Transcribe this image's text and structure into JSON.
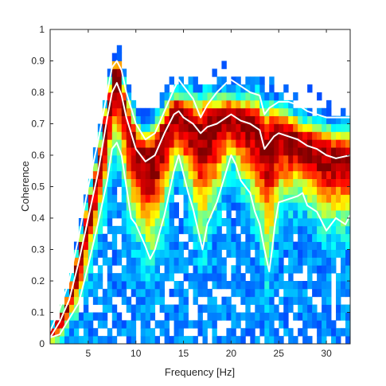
{
  "chart_data": {
    "type": "heatmap",
    "xlabel": "Frequency [Hz]",
    "ylabel": "Coherence",
    "xlim": [
      1,
      32.5
    ],
    "ylim": [
      0,
      1
    ],
    "x_ticks": [
      5,
      10,
      15,
      20,
      25,
      30
    ],
    "y_ticks": [
      0,
      0.1,
      0.2,
      0.3,
      0.4,
      0.5,
      0.6,
      0.7,
      0.8,
      0.9,
      1
    ],
    "y_tick_labels": [
      "0",
      "0.1",
      "0.2",
      "0.3",
      "0.4",
      "0.5",
      "0.6",
      "0.7",
      "0.8",
      "0.9",
      "1"
    ],
    "colormap": "jet",
    "background": "#ffffff",
    "heatmap": {
      "x_start": 1.0,
      "x_step": 0.5,
      "y_step": 0.025,
      "description_of_density": "2D histogram of coherence values per frequency; density shown as jet colours"
    },
    "series": [
      {
        "color": "#ffffff",
        "x": [
          1,
          2,
          3,
          4,
          5,
          6,
          7,
          7.5,
          8,
          8.5,
          9,
          10,
          11,
          12,
          13,
          14,
          14.5,
          15,
          16,
          16.8,
          17.5,
          18.5,
          19.5,
          20,
          21,
          22,
          23,
          23.5,
          24,
          24.5,
          25,
          26,
          27,
          28,
          29,
          30,
          31,
          32.5
        ],
        "values": [
          0.02,
          0.07,
          0.14,
          0.26,
          0.4,
          0.54,
          0.72,
          0.8,
          0.83,
          0.79,
          0.72,
          0.62,
          0.58,
          0.6,
          0.67,
          0.73,
          0.74,
          0.72,
          0.7,
          0.67,
          0.69,
          0.7,
          0.72,
          0.73,
          0.71,
          0.7,
          0.68,
          0.62,
          0.64,
          0.66,
          0.67,
          0.66,
          0.65,
          0.63,
          0.62,
          0.6,
          0.59,
          0.6
        ]
      },
      {
        "color": "#ffffff",
        "x": [
          1,
          2,
          3,
          4,
          5,
          6,
          7,
          7.5,
          8,
          8.5,
          9,
          10,
          11,
          12,
          13,
          14,
          14.5,
          15,
          16,
          16.8,
          17.5,
          18.5,
          19.5,
          20,
          21,
          22,
          23,
          23.5,
          24,
          24.5,
          25,
          26,
          27,
          28,
          29,
          30,
          31,
          32.5
        ],
        "values": [
          0.04,
          0.11,
          0.2,
          0.34,
          0.5,
          0.64,
          0.8,
          0.88,
          0.9,
          0.87,
          0.8,
          0.7,
          0.65,
          0.67,
          0.74,
          0.81,
          0.84,
          0.82,
          0.78,
          0.72,
          0.76,
          0.8,
          0.83,
          0.84,
          0.82,
          0.8,
          0.79,
          0.73,
          0.75,
          0.76,
          0.77,
          0.77,
          0.76,
          0.74,
          0.73,
          0.72,
          0.72,
          0.72
        ]
      },
      {
        "color": "#ffffff",
        "x": [
          1,
          2,
          3,
          4,
          5,
          6,
          7,
          7.5,
          8,
          8.5,
          9,
          9.5,
          10,
          11,
          11.5,
          12,
          13,
          14,
          14.5,
          15,
          15.5,
          16,
          17,
          17.5,
          18.5,
          19.5,
          20,
          20.5,
          21,
          22,
          22.5,
          23,
          23.5,
          24,
          24.3,
          24.6,
          25,
          26,
          27,
          27.5,
          28,
          29,
          30,
          30.5,
          31,
          32,
          32.5
        ],
        "values": [
          0.02,
          0.03,
          0.08,
          0.13,
          0.25,
          0.38,
          0.52,
          0.62,
          0.64,
          0.6,
          0.5,
          0.4,
          0.38,
          0.31,
          0.27,
          0.3,
          0.41,
          0.55,
          0.6,
          0.54,
          0.48,
          0.43,
          0.3,
          0.38,
          0.45,
          0.55,
          0.6,
          0.57,
          0.52,
          0.48,
          0.42,
          0.38,
          0.3,
          0.23,
          0.3,
          0.38,
          0.45,
          0.46,
          0.47,
          0.48,
          0.44,
          0.42,
          0.36,
          0.38,
          0.4,
          0.38,
          0.41
        ]
      }
    ]
  }
}
